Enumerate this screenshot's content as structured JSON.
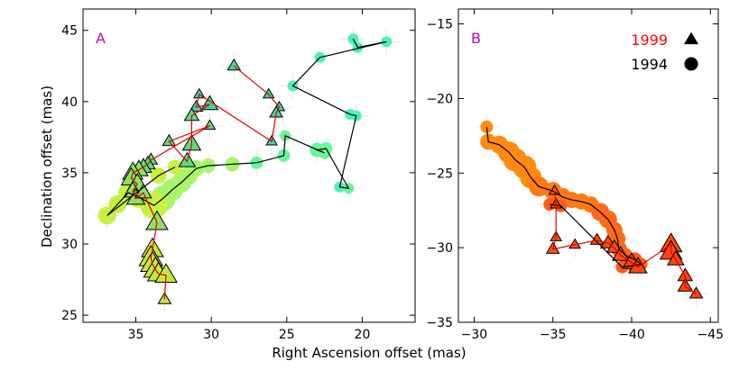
{
  "figure": {
    "xlabel": "Right Ascension offset (mas)",
    "ylabel": "Declination offset (mas)"
  },
  "chart_data": [
    {
      "type": "scatter",
      "panel": "A",
      "panel_label": "A",
      "panel_label_color": "#c000c0",
      "xlim": [
        38.5,
        16.5
      ],
      "ylim": [
        24.5,
        46.5
      ],
      "xticks": [
        35,
        30,
        25,
        20
      ],
      "yticks": [
        25,
        30,
        35,
        40,
        45
      ],
      "xticklabels": [
        "35",
        "30",
        "25",
        "20"
      ],
      "yticklabels": [
        "25",
        "30",
        "35",
        "40",
        "45"
      ],
      "grid": false,
      "series": [
        {
          "marker": "circle",
          "line_color": "#000000",
          "colors": [
            "#4cf0b8",
            "#6af59a",
            "#a6f56a",
            "#c8f040"
          ],
          "points": [
            [
              20.6,
              44.4
            ],
            [
              20.3,
              43.8
            ],
            [
              18.4,
              44.2
            ],
            [
              22.8,
              43.1
            ],
            [
              24.6,
              41.1
            ],
            [
              20.8,
              39.1
            ],
            [
              20.4,
              39.0
            ],
            [
              21.5,
              34.0
            ],
            [
              20.9,
              33.9
            ],
            [
              22.4,
              36.7
            ],
            [
              23.0,
              36.6
            ],
            [
              22.5,
              36.4
            ],
            [
              25.1,
              37.6
            ],
            [
              25.2,
              36.2
            ],
            [
              27.0,
              35.7
            ],
            [
              28.6,
              35.6
            ],
            [
              30.2,
              35.5
            ],
            [
              31.0,
              35.3
            ],
            [
              31.5,
              34.8
            ],
            [
              32.0,
              34.3
            ],
            [
              32.6,
              33.8
            ],
            [
              33.2,
              33.2
            ],
            [
              33.8,
              32.7
            ],
            [
              34.8,
              33.3
            ],
            [
              35.5,
              33.6
            ],
            [
              36.2,
              32.8
            ],
            [
              36.9,
              32.0
            ],
            [
              33.5,
              34.8
            ],
            [
              32.4,
              35.4
            ]
          ],
          "sizes": [
            6,
            6,
            6,
            6,
            6,
            6,
            6,
            6,
            6,
            7,
            8,
            7,
            6,
            7,
            7,
            8,
            8,
            9,
            10,
            11,
            12,
            14,
            15,
            12,
            11,
            10,
            10,
            9,
            8
          ]
        },
        {
          "marker": "triangle",
          "line_color": "#e00000",
          "colors": [
            "#40d8a0",
            "#60dc7c",
            "#90e060",
            "#c8e838"
          ],
          "points": [
            [
              28.5,
              42.5
            ],
            [
              26.2,
              40.5
            ],
            [
              25.5,
              39.6
            ],
            [
              25.7,
              39.2
            ],
            [
              26.0,
              37.2
            ],
            [
              30.8,
              40.5
            ],
            [
              31.0,
              39.6
            ],
            [
              30.1,
              39.8
            ],
            [
              31.3,
              39.0
            ],
            [
              31.3,
              37.0
            ],
            [
              31.6,
              35.8
            ],
            [
              32.8,
              37.2
            ],
            [
              30.1,
              38.3
            ],
            [
              34.0,
              35.9
            ],
            [
              34.2,
              35.6
            ],
            [
              34.5,
              35.4
            ],
            [
              34.8,
              35.2
            ],
            [
              35.2,
              35.0
            ],
            [
              35.3,
              34.6
            ],
            [
              34.9,
              34.2
            ],
            [
              35.2,
              33.7
            ],
            [
              35.0,
              33.2
            ],
            [
              34.5,
              33.6
            ],
            [
              33.6,
              31.5
            ],
            [
              33.9,
              29.6
            ],
            [
              34.0,
              29.0
            ],
            [
              33.9,
              28.6
            ],
            [
              33.7,
              28.2
            ],
            [
              33.5,
              27.9
            ],
            [
              33.0,
              27.8
            ],
            [
              33.1,
              26.1
            ]
          ],
          "sizes": [
            7,
            6,
            6,
            7,
            6,
            6,
            7,
            9,
            8,
            10,
            9,
            7,
            6,
            7,
            8,
            9,
            10,
            11,
            11,
            11,
            10,
            10,
            9,
            12,
            12,
            13,
            13,
            13,
            12,
            12,
            7
          ]
        }
      ]
    },
    {
      "type": "scatter",
      "panel": "B",
      "panel_label": "B",
      "panel_label_color": "#c000c0",
      "xlim": [
        -29,
        -45.5
      ],
      "ylim": [
        -35,
        -14
      ],
      "xticks": [
        -30,
        -35,
        -40,
        -45
      ],
      "yticks": [
        -35,
        -30,
        -25,
        -20,
        -15
      ],
      "xticklabels": [
        "−30",
        "−35",
        "−40",
        "−45"
      ],
      "yticklabels": [
        "−35",
        "−30",
        "−25",
        "−20",
        "−15"
      ],
      "grid": false,
      "legend": {
        "position": "top-right",
        "entries": [
          {
            "label": "1999",
            "marker": "triangle",
            "color": "#ff0000"
          },
          {
            "label": "1994",
            "marker": "circle",
            "color": "#000000"
          }
        ]
      },
      "series": [
        {
          "name": "1994",
          "marker": "circle",
          "line_color": "#000000",
          "colors": [
            "#ff8a10",
            "#ff7a12",
            "#ff6a18",
            "#ff5a1a"
          ],
          "points": [
            [
              -30.8,
              -21.9
            ],
            [
              -30.9,
              -22.9
            ],
            [
              -31.6,
              -23.1
            ],
            [
              -32.2,
              -23.6
            ],
            [
              -32.6,
              -24.1
            ],
            [
              -33.2,
              -24.6
            ],
            [
              -33.6,
              -25.3
            ],
            [
              -34.1,
              -25.9
            ],
            [
              -35.0,
              -26.2
            ],
            [
              -35.6,
              -26.6
            ],
            [
              -36.2,
              -26.8
            ],
            [
              -36.8,
              -26.9
            ],
            [
              -37.4,
              -27.1
            ],
            [
              -38.0,
              -27.6
            ],
            [
              -38.5,
              -28.1
            ],
            [
              -38.9,
              -28.8
            ],
            [
              -39.1,
              -29.4
            ],
            [
              -39.2,
              -30.1
            ],
            [
              -39.6,
              -30.5
            ],
            [
              -40.2,
              -30.8
            ],
            [
              -40.6,
              -31.1
            ],
            [
              -40.1,
              -31.2
            ],
            [
              -39.4,
              -31.3
            ],
            [
              -35.5,
              -27.2
            ],
            [
              -34.8,
              -27.1
            ]
          ],
          "sizes": [
            7,
            9,
            10,
            12,
            13,
            13,
            12,
            11,
            10,
            10,
            9,
            9,
            9,
            10,
            10,
            9,
            9,
            9,
            8,
            8,
            7,
            7,
            7,
            7,
            7
          ]
        },
        {
          "name": "1999",
          "marker": "triangle",
          "line_color": "#e00000",
          "colors": [
            "#ff5010",
            "#ff4410"
          ],
          "points": [
            [
              -35.1,
              -26.2
            ],
            [
              -35.2,
              -27.1
            ],
            [
              -35.2,
              -29.3
            ],
            [
              -35.0,
              -30.1
            ],
            [
              -36.4,
              -29.8
            ],
            [
              -37.8,
              -29.5
            ],
            [
              -38.5,
              -29.7
            ],
            [
              -38.9,
              -30.0
            ],
            [
              -39.3,
              -30.5
            ],
            [
              -40.0,
              -31.0
            ],
            [
              -40.4,
              -31.3
            ],
            [
              -42.5,
              -29.8
            ],
            [
              -42.5,
              -30.3
            ],
            [
              -42.8,
              -30.8
            ],
            [
              -43.4,
              -31.9
            ],
            [
              -43.4,
              -32.6
            ],
            [
              -44.1,
              -33.1
            ]
          ],
          "sizes": [
            6,
            6,
            6,
            7,
            6,
            7,
            8,
            8,
            9,
            10,
            10,
            12,
            12,
            9,
            8,
            8,
            7
          ]
        }
      ]
    }
  ]
}
